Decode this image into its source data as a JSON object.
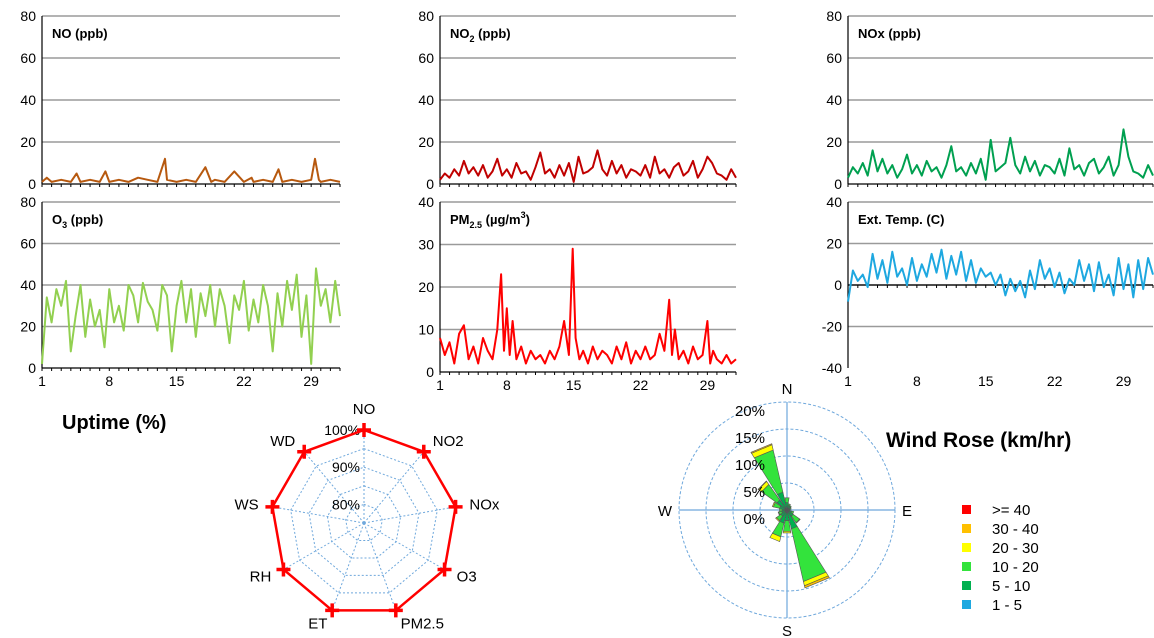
{
  "chart_data": [
    {
      "type": "line",
      "id": "no",
      "title": "NO (ppb)",
      "title_base": "NO (ppb)",
      "title_sub": "",
      "title_rest": "",
      "color": "#b7590f",
      "ylim": [
        0,
        80
      ],
      "yticks": [
        0,
        20,
        40,
        60,
        80
      ],
      "xlim": [
        1,
        32
      ],
      "xticks": [
        1,
        8,
        15,
        22,
        29
      ],
      "show_xticks": false,
      "grid": true,
      "series": [
        {
          "x": [
            1,
            1.5,
            2,
            3,
            4,
            4.6,
            5,
            6,
            7,
            7.6,
            8,
            9,
            10,
            11,
            12,
            13,
            13.8,
            14,
            15,
            16,
            17,
            18,
            18.6,
            19,
            20,
            21,
            22,
            22.8,
            23,
            24,
            25,
            25.6,
            26,
            27,
            28,
            29,
            29.4,
            29.8,
            30,
            31,
            32
          ],
          "values": [
            1,
            3,
            1,
            2,
            1,
            5,
            1,
            2,
            1,
            6,
            1,
            2,
            1,
            3,
            2,
            1,
            12,
            2,
            1,
            2,
            1,
            8,
            1,
            2,
            1,
            6,
            1,
            3,
            1,
            2,
            1,
            7,
            1,
            2,
            1,
            2,
            12,
            2,
            1,
            2,
            1
          ]
        }
      ]
    },
    {
      "type": "line",
      "id": "no2",
      "title": "NO2 (ppb)",
      "title_base": "NO",
      "title_sub": "2",
      "title_rest": " (ppb)",
      "color": "#c00000",
      "ylim": [
        0,
        80
      ],
      "yticks": [
        0,
        20,
        40,
        60,
        80
      ],
      "xlim": [
        1,
        32
      ],
      "xticks": [
        1,
        8,
        15,
        22,
        29
      ],
      "show_xticks": false,
      "grid": true,
      "series": [
        {
          "x": [
            1,
            1.5,
            2,
            2.5,
            3,
            3.5,
            4,
            4.5,
            5,
            5.5,
            6,
            6.5,
            7,
            7.5,
            8,
            8.5,
            9,
            9.5,
            10,
            10.5,
            11,
            11.5,
            12,
            12.5,
            13,
            13.5,
            14,
            14.5,
            15,
            15.5,
            16,
            16.5,
            17,
            17.5,
            18,
            18.5,
            19,
            19.5,
            20,
            20.5,
            21,
            21.5,
            22,
            22.5,
            23,
            23.5,
            24,
            24.5,
            25,
            25.5,
            26,
            26.5,
            27,
            27.5,
            28,
            28.5,
            29,
            29.5,
            30,
            30.5,
            31,
            31.5,
            32
          ],
          "values": [
            2,
            5,
            3,
            7,
            4,
            11,
            5,
            8,
            4,
            9,
            3,
            6,
            12,
            4,
            7,
            3,
            10,
            5,
            6,
            2,
            8,
            15,
            5,
            7,
            3,
            9,
            4,
            10,
            1,
            13,
            5,
            6,
            8,
            16,
            7,
            4,
            11,
            5,
            9,
            3,
            7,
            6,
            4,
            9,
            3,
            13,
            5,
            7,
            3,
            8,
            10,
            4,
            6,
            11,
            3,
            7,
            13,
            10,
            5,
            4,
            2,
            7,
            3
          ]
        }
      ]
    },
    {
      "type": "line",
      "id": "nox",
      "title": "NOx (ppb)",
      "title_base": "NOx (ppb)",
      "title_sub": "",
      "title_rest": "",
      "color": "#00a050",
      "ylim": [
        0,
        80
      ],
      "yticks": [
        0,
        20,
        40,
        60,
        80
      ],
      "xlim": [
        1,
        32
      ],
      "xticks": [
        1,
        8,
        15,
        22,
        29
      ],
      "show_xticks": false,
      "grid": true,
      "series": [
        {
          "x": [
            1,
            1.5,
            2,
            2.5,
            3,
            3.5,
            4,
            4.5,
            5,
            5.5,
            6,
            6.5,
            7,
            7.5,
            8,
            8.5,
            9,
            9.5,
            10,
            10.5,
            11,
            11.5,
            12,
            12.5,
            13,
            13.5,
            14,
            14.5,
            15,
            15.5,
            16,
            16.5,
            17,
            17.5,
            18,
            18.5,
            19,
            19.5,
            20,
            20.5,
            21,
            21.5,
            22,
            22.5,
            23,
            23.5,
            24,
            24.5,
            25,
            25.5,
            26,
            26.5,
            27,
            27.5,
            28,
            28.5,
            29,
            29.5,
            30,
            30.5,
            31,
            31.5,
            32
          ],
          "values": [
            3,
            8,
            5,
            10,
            4,
            16,
            6,
            12,
            5,
            9,
            3,
            7,
            14,
            5,
            9,
            4,
            11,
            6,
            8,
            3,
            9,
            18,
            6,
            8,
            4,
            10,
            5,
            12,
            2,
            21,
            6,
            8,
            10,
            22,
            9,
            5,
            13,
            6,
            11,
            4,
            9,
            8,
            5,
            12,
            4,
            17,
            7,
            9,
            4,
            10,
            12,
            5,
            8,
            13,
            4,
            9,
            26,
            13,
            6,
            5,
            3,
            9,
            4
          ]
        }
      ]
    },
    {
      "type": "line",
      "id": "o3",
      "title": "O3 (ppb)",
      "title_base": "O",
      "title_sub": "3",
      "title_rest": " (ppb)",
      "color": "#92d050",
      "ylim": [
        0,
        80
      ],
      "yticks": [
        0,
        20,
        40,
        60,
        80
      ],
      "xlim": [
        1,
        32
      ],
      "xticks": [
        1,
        8,
        15,
        22,
        29
      ],
      "show_xticks": true,
      "grid": true,
      "series": [
        {
          "x": [
            1,
            1.5,
            2,
            2.5,
            3,
            3.5,
            4,
            4.5,
            5,
            5.5,
            6,
            6.5,
            7,
            7.5,
            8,
            8.5,
            9,
            9.5,
            10,
            10.5,
            11,
            11.5,
            12,
            12.5,
            13,
            13.5,
            14,
            14.5,
            15,
            15.5,
            16,
            16.5,
            17,
            17.5,
            18,
            18.5,
            19,
            19.5,
            20,
            20.5,
            21,
            21.5,
            22,
            22.5,
            23,
            23.5,
            24,
            24.5,
            25,
            25.5,
            26,
            26.5,
            27,
            27.5,
            28,
            28.5,
            29,
            29.5,
            30,
            30.5,
            31,
            31.5,
            32
          ],
          "values": [
            2,
            34,
            22,
            38,
            30,
            42,
            8,
            25,
            40,
            15,
            33,
            20,
            28,
            10,
            38,
            22,
            30,
            18,
            40,
            35,
            22,
            41,
            32,
            28,
            18,
            40,
            35,
            8,
            30,
            42,
            22,
            38,
            15,
            36,
            25,
            40,
            20,
            38,
            30,
            12,
            35,
            28,
            42,
            18,
            33,
            22,
            40,
            30,
            8,
            36,
            20,
            42,
            28,
            45,
            15,
            35,
            2,
            48,
            30,
            38,
            22,
            42,
            25
          ]
        }
      ]
    },
    {
      "type": "line",
      "id": "pm25",
      "title": "PM2.5 (µg/m3)",
      "title_base": "PM",
      "title_sub": "2.5",
      "title_rest": " (µg/m",
      "title_sup": "3",
      "title_end": ")",
      "color": "#ff0000",
      "ylim": [
        0,
        40
      ],
      "yticks": [
        0,
        10,
        20,
        30,
        40
      ],
      "xlim": [
        1,
        32
      ],
      "xticks": [
        1,
        8,
        15,
        22,
        29
      ],
      "show_xticks": true,
      "grid": true,
      "series": [
        {
          "x": [
            1,
            1.5,
            2,
            2.5,
            3,
            3.5,
            4,
            4.5,
            5,
            5.5,
            6,
            6.5,
            7,
            7.4,
            7.7,
            8,
            8.3,
            8.6,
            9,
            9.5,
            10,
            10.5,
            11,
            11.5,
            12,
            12.5,
            13,
            13.5,
            14,
            14.5,
            14.9,
            15.2,
            15.6,
            16,
            16.5,
            17,
            17.5,
            18,
            18.5,
            19,
            19.5,
            20,
            20.5,
            21,
            21.5,
            22,
            22.5,
            23,
            23.5,
            24,
            24.5,
            25,
            25.3,
            25.6,
            26,
            26.5,
            27,
            27.5,
            28,
            28.5,
            29,
            29.3,
            29.6,
            30,
            30.5,
            31,
            31.5,
            32
          ],
          "values": [
            8,
            4,
            7,
            2,
            9,
            11,
            3,
            6,
            2,
            8,
            5,
            3,
            10,
            23,
            5,
            15,
            4,
            12,
            3,
            6,
            2,
            5,
            3,
            4,
            2,
            5,
            3,
            6,
            12,
            4,
            29,
            8,
            3,
            5,
            2,
            6,
            3,
            5,
            4,
            2,
            6,
            3,
            7,
            2,
            5,
            3,
            6,
            3,
            4,
            9,
            5,
            17,
            4,
            10,
            3,
            5,
            2,
            6,
            3,
            4,
            12,
            2,
            5,
            3,
            2,
            4,
            2,
            3
          ]
        }
      ]
    },
    {
      "type": "line",
      "id": "temp",
      "title": "Ext. Temp. (C)",
      "title_base": "Ext. Temp. (C)",
      "title_sub": "",
      "title_rest": "",
      "color": "#1ea8e0",
      "ylim": [
        -40,
        40
      ],
      "yticks": [
        -40,
        -20,
        0,
        20,
        40
      ],
      "xlim": [
        1,
        32
      ],
      "xticks": [
        1,
        8,
        15,
        22,
        29
      ],
      "show_xticks": true,
      "grid": true,
      "series": [
        {
          "x": [
            1,
            1.5,
            2,
            2.5,
            3,
            3.5,
            4,
            4.5,
            5,
            5.5,
            6,
            6.5,
            7,
            7.5,
            8,
            8.5,
            9,
            9.5,
            10,
            10.5,
            11,
            11.5,
            12,
            12.5,
            13,
            13.5,
            14,
            14.5,
            15,
            15.5,
            16,
            16.5,
            17,
            17.5,
            18,
            18.5,
            19,
            19.5,
            20,
            20.5,
            21,
            21.5,
            22,
            22.5,
            23,
            23.5,
            24,
            24.5,
            25,
            25.5,
            26,
            26.5,
            27,
            27.5,
            28,
            28.5,
            29,
            29.5,
            30,
            30.5,
            31,
            31.5,
            32
          ],
          "values": [
            -8,
            7,
            2,
            5,
            -1,
            15,
            3,
            12,
            1,
            16,
            4,
            8,
            0,
            13,
            2,
            10,
            4,
            15,
            6,
            17,
            3,
            14,
            5,
            16,
            2,
            12,
            1,
            8,
            4,
            6,
            0,
            5,
            -5,
            3,
            -3,
            2,
            -6,
            7,
            -2,
            12,
            3,
            8,
            -1,
            6,
            -4,
            3,
            0,
            12,
            2,
            10,
            -3,
            11,
            -1,
            5,
            -5,
            13,
            -2,
            10,
            -6,
            12,
            -2,
            13,
            5
          ]
        }
      ]
    },
    {
      "type": "radar",
      "id": "uptime",
      "title": "Uptime (%)",
      "color": "#ff0000",
      "axes": [
        "NO",
        "NO2",
        "NOx",
        "O3",
        "PM2.5",
        "ET",
        "RH",
        "WS",
        "WD"
      ],
      "values": [
        100,
        100,
        100,
        100,
        100,
        100,
        100,
        100,
        100
      ],
      "rlim": [
        75,
        100
      ],
      "rticks": [
        "80%",
        "90%",
        "100%"
      ],
      "rtick_values": [
        80,
        90,
        100
      ]
    },
    {
      "type": "wind-rose",
      "id": "windrose",
      "title": "Wind Rose (km/hr)",
      "directions": [
        "N",
        "E",
        "S",
        "W"
      ],
      "rticks": [
        "0%",
        "5%",
        "10%",
        "15%",
        "20%"
      ],
      "rtick_values": [
        0,
        5,
        10,
        15,
        20
      ],
      "rmax": 20,
      "bins": [
        {
          "label": ">= 40",
          "color": "#ff0000"
        },
        {
          "label": "30 - 40",
          "color": "#ffc000"
        },
        {
          "label": "20 - 30",
          "color": "#ffff00"
        },
        {
          "label": "10 - 20",
          "color": "#33e33c"
        },
        {
          "label": "5 - 10",
          "color": "#00b050"
        },
        {
          "label": "1 - 5",
          "color": "#1ea8e0"
        }
      ],
      "sector_bins": [
        "1 - 5",
        "5 - 10",
        "10 - 20",
        "20 - 30",
        "30 - 40"
      ],
      "sectors": [
        {
          "dir": 0,
          "values": [
            0.4,
            1.0,
            0.9,
            0,
            0
          ]
        },
        {
          "dir": 22.5,
          "values": [
            0.3,
            0.6,
            0.3,
            0,
            0
          ]
        },
        {
          "dir": 45,
          "values": [
            0.3,
            0.5,
            0.2,
            0,
            0
          ]
        },
        {
          "dir": 67.5,
          "values": [
            0.2,
            0.4,
            0.2,
            0,
            0
          ]
        },
        {
          "dir": 90,
          "values": [
            0.2,
            0.3,
            0.1,
            0,
            0
          ]
        },
        {
          "dir": 112.5,
          "values": [
            0.3,
            0.6,
            0.4,
            0,
            0
          ]
        },
        {
          "dir": 135,
          "values": [
            0.4,
            1.0,
            1.5,
            0.1,
            0
          ]
        },
        {
          "dir": 157.5,
          "values": [
            0.6,
            3.0,
            10.0,
            0.8,
            0.4
          ]
        },
        {
          "dir": 180,
          "values": [
            0.5,
            1.5,
            2.0,
            0.3,
            0
          ]
        },
        {
          "dir": 202.5,
          "values": [
            0.5,
            2.0,
            2.6,
            0.9,
            0
          ]
        },
        {
          "dir": 225,
          "values": [
            0.4,
            1.0,
            1.0,
            0.2,
            0
          ]
        },
        {
          "dir": 247.5,
          "values": [
            0.3,
            0.7,
            0.6,
            0.1,
            0
          ]
        },
        {
          "dir": 270,
          "values": [
            0.3,
            0.6,
            0.5,
            0,
            0
          ]
        },
        {
          "dir": 292.5,
          "values": [
            0.4,
            1.0,
            1.2,
            0.2,
            0
          ]
        },
        {
          "dir": 315,
          "values": [
            0.5,
            1.8,
            3.5,
            0.7,
            0.1
          ]
        },
        {
          "dir": 337.5,
          "values": [
            0.6,
            2.8,
            8.0,
            1.0,
            0.2
          ]
        }
      ]
    }
  ]
}
